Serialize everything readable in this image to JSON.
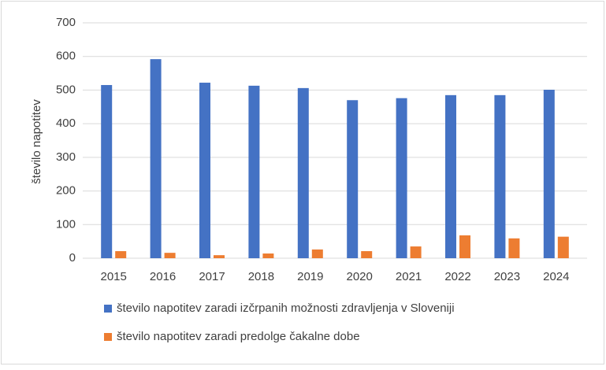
{
  "chart_data": {
    "type": "bar",
    "y_label": "število napotitev",
    "categories": [
      "2015",
      "2016",
      "2017",
      "2018",
      "2019",
      "2020",
      "2021",
      "2022",
      "2023",
      "2024"
    ],
    "series": [
      {
        "name": "število napotitev zaradi izčrpanih možnosti zdravljenja v Sloveniji",
        "color": "#4472c4",
        "values": [
          515,
          592,
          522,
          513,
          506,
          470,
          476,
          485,
          485,
          501
        ]
      },
      {
        "name": "število napotitev zaradi predolge čakalne dobe",
        "color": "#ed7d31",
        "values": [
          21,
          16,
          9,
          14,
          26,
          21,
          35,
          68,
          59,
          64
        ]
      }
    ],
    "ylim": [
      0,
      700
    ],
    "yticks": [
      0,
      100,
      200,
      300,
      400,
      500,
      600,
      700
    ],
    "grid": true
  }
}
